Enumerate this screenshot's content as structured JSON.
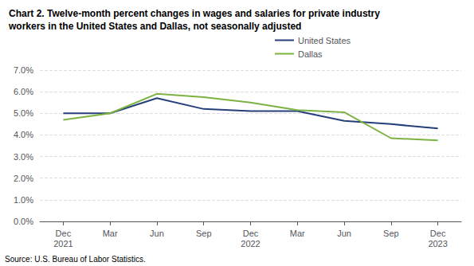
{
  "chart_data": {
    "type": "line",
    "title": "Chart 2. Twelve-month percent changes in wages and salaries for private industry\nworkers in the United States and Dallas, not seasonally adjusted",
    "annotations": [
      "Source: U.S. Bureau of Labor Statistics."
    ],
    "categories": [
      "Dec\n2021",
      "Mar",
      "Jun",
      "Sep",
      "Dec\n2022",
      "Mar",
      "Jun",
      "Sep",
      "Dec\n2023"
    ],
    "series": [
      {
        "name": "United States",
        "color": "#243F7A",
        "values": [
          5.0,
          5.0,
          5.7,
          5.2,
          5.1,
          5.1,
          4.65,
          4.5,
          4.3
        ]
      },
      {
        "name": "Dallas",
        "color": "#7CB241",
        "values": [
          4.7,
          5.0,
          5.9,
          5.75,
          5.5,
          5.15,
          5.05,
          3.85,
          3.75
        ]
      }
    ],
    "ylim": [
      0.0,
      7.0
    ],
    "yticks": [
      {
        "value": 0.0,
        "label": "0.0%"
      },
      {
        "value": 1.0,
        "label": "1.0%"
      },
      {
        "value": 2.0,
        "label": "2.0%"
      },
      {
        "value": 3.0,
        "label": "3.0%"
      },
      {
        "value": 4.0,
        "label": "4.0%"
      },
      {
        "value": 5.0,
        "label": "5.0%"
      },
      {
        "value": 6.0,
        "label": "6.0%"
      },
      {
        "value": 7.0,
        "label": "7.0%"
      }
    ],
    "grid": true,
    "legend": "top"
  }
}
